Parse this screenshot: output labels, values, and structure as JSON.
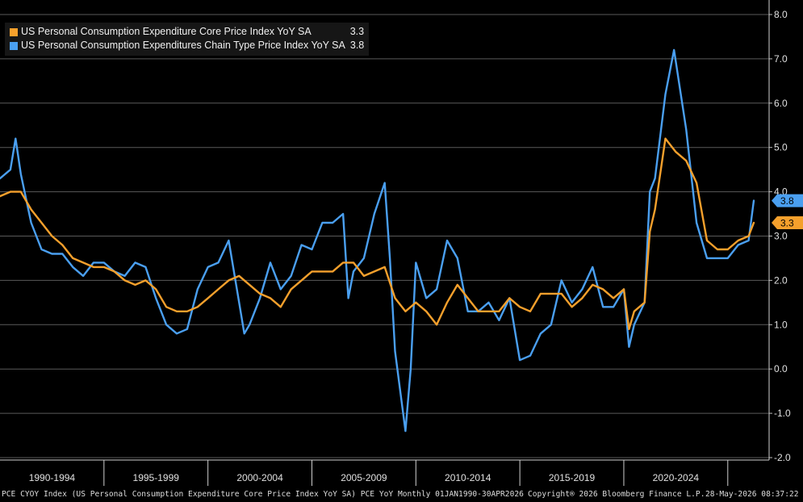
{
  "legend": {
    "items": [
      {
        "label": "US Personal Consumption Expenditure Core Price Index YoY SA",
        "value": "3.3",
        "color": "#f5a02c"
      },
      {
        "label": "US Personal Consumption Expenditures Chain Type Price Index YoY SA",
        "value": "3.8",
        "color": "#4a9ff0"
      }
    ]
  },
  "footer": {
    "left": "PCE CYOY Index (US Personal Consumption Expenditure Core Price Index YoY SA) PCE YoY Monthly 01JAN1990-30APR2026",
    "copyright": "Copyright® 2026 Bloomberg Finance L.P.",
    "timestamp": "28-May-2026 08:37:22"
  },
  "chart_data": {
    "type": "line",
    "ylim": [
      -2.0,
      8.0
    ],
    "y_ticks": [
      "8.0",
      "7.0",
      "6.0",
      "5.0",
      "4.0",
      "3.0",
      "2.0",
      "1.0",
      "0.0",
      "-1.0",
      "-2.0"
    ],
    "x_range": [
      "1990-01",
      "2026-04"
    ],
    "x_periods": [
      "1990-1994",
      "1995-1999",
      "2000-2004",
      "2005-2009",
      "2010-2014",
      "2015-2019",
      "2020-2024"
    ],
    "grid": "horizontal",
    "legend_position": "top-left",
    "series": [
      {
        "name": "US Personal Consumption Expenditure Core Price Index YoY SA",
        "color": "#f5a02c",
        "last_value": "3.3",
        "points": [
          [
            "1990-01",
            3.9
          ],
          [
            "1990-07",
            4.0
          ],
          [
            "1991-01",
            4.0
          ],
          [
            "1991-07",
            3.6
          ],
          [
            "1992-01",
            3.3
          ],
          [
            "1992-07",
            3.0
          ],
          [
            "1993-01",
            2.8
          ],
          [
            "1993-07",
            2.5
          ],
          [
            "1994-01",
            2.4
          ],
          [
            "1994-07",
            2.3
          ],
          [
            "1995-01",
            2.3
          ],
          [
            "1995-07",
            2.2
          ],
          [
            "1996-01",
            2.0
          ],
          [
            "1996-07",
            1.9
          ],
          [
            "1997-01",
            2.0
          ],
          [
            "1997-07",
            1.8
          ],
          [
            "1998-01",
            1.4
          ],
          [
            "1998-07",
            1.3
          ],
          [
            "1999-01",
            1.3
          ],
          [
            "1999-07",
            1.4
          ],
          [
            "2000-01",
            1.6
          ],
          [
            "2000-07",
            1.8
          ],
          [
            "2001-01",
            2.0
          ],
          [
            "2001-07",
            2.1
          ],
          [
            "2002-01",
            1.9
          ],
          [
            "2002-07",
            1.7
          ],
          [
            "2003-01",
            1.6
          ],
          [
            "2003-07",
            1.4
          ],
          [
            "2004-01",
            1.8
          ],
          [
            "2004-07",
            2.0
          ],
          [
            "2005-01",
            2.2
          ],
          [
            "2005-07",
            2.2
          ],
          [
            "2006-01",
            2.2
          ],
          [
            "2006-07",
            2.4
          ],
          [
            "2007-01",
            2.4
          ],
          [
            "2007-07",
            2.1
          ],
          [
            "2008-01",
            2.2
          ],
          [
            "2008-07",
            2.3
          ],
          [
            "2009-01",
            1.6
          ],
          [
            "2009-07",
            1.3
          ],
          [
            "2010-01",
            1.5
          ],
          [
            "2010-07",
            1.3
          ],
          [
            "2011-01",
            1.0
          ],
          [
            "2011-07",
            1.5
          ],
          [
            "2012-01",
            1.9
          ],
          [
            "2012-07",
            1.6
          ],
          [
            "2013-01",
            1.3
          ],
          [
            "2013-07",
            1.3
          ],
          [
            "2014-01",
            1.3
          ],
          [
            "2014-07",
            1.6
          ],
          [
            "2015-01",
            1.4
          ],
          [
            "2015-07",
            1.3
          ],
          [
            "2016-01",
            1.7
          ],
          [
            "2016-07",
            1.7
          ],
          [
            "2017-01",
            1.7
          ],
          [
            "2017-07",
            1.4
          ],
          [
            "2018-01",
            1.6
          ],
          [
            "2018-07",
            1.9
          ],
          [
            "2019-01",
            1.8
          ],
          [
            "2019-07",
            1.6
          ],
          [
            "2020-01",
            1.8
          ],
          [
            "2020-04",
            0.9
          ],
          [
            "2020-07",
            1.3
          ],
          [
            "2021-01",
            1.5
          ],
          [
            "2021-04",
            3.1
          ],
          [
            "2021-07",
            3.6
          ],
          [
            "2022-01",
            5.2
          ],
          [
            "2022-07",
            4.9
          ],
          [
            "2023-01",
            4.7
          ],
          [
            "2023-07",
            4.2
          ],
          [
            "2024-01",
            2.9
          ],
          [
            "2024-07",
            2.7
          ],
          [
            "2025-01",
            2.7
          ],
          [
            "2025-07",
            2.9
          ],
          [
            "2026-01",
            3.0
          ],
          [
            "2026-04",
            3.3
          ]
        ]
      },
      {
        "name": "US Personal Consumption Expenditures Chain Type Price Index YoY SA",
        "color": "#4a9ff0",
        "last_value": "3.8",
        "points": [
          [
            "1990-01",
            4.3
          ],
          [
            "1990-07",
            4.5
          ],
          [
            "1990-10",
            5.2
          ],
          [
            "1991-01",
            4.4
          ],
          [
            "1991-07",
            3.3
          ],
          [
            "1992-01",
            2.7
          ],
          [
            "1992-07",
            2.6
          ],
          [
            "1993-01",
            2.6
          ],
          [
            "1993-07",
            2.3
          ],
          [
            "1994-01",
            2.1
          ],
          [
            "1994-07",
            2.4
          ],
          [
            "1995-01",
            2.4
          ],
          [
            "1995-07",
            2.2
          ],
          [
            "1996-01",
            2.1
          ],
          [
            "1996-07",
            2.4
          ],
          [
            "1997-01",
            2.3
          ],
          [
            "1997-07",
            1.6
          ],
          [
            "1998-01",
            1.0
          ],
          [
            "1998-07",
            0.8
          ],
          [
            "1999-01",
            0.9
          ],
          [
            "1999-07",
            1.8
          ],
          [
            "2000-01",
            2.3
          ],
          [
            "2000-07",
            2.4
          ],
          [
            "2001-01",
            2.9
          ],
          [
            "2001-07",
            1.5
          ],
          [
            "2001-10",
            0.8
          ],
          [
            "2002-01",
            1.0
          ],
          [
            "2002-07",
            1.6
          ],
          [
            "2003-01",
            2.4
          ],
          [
            "2003-07",
            1.8
          ],
          [
            "2004-01",
            2.1
          ],
          [
            "2004-07",
            2.8
          ],
          [
            "2005-01",
            2.7
          ],
          [
            "2005-07",
            3.3
          ],
          [
            "2006-01",
            3.3
          ],
          [
            "2006-07",
            3.5
          ],
          [
            "2006-10",
            1.6
          ],
          [
            "2007-01",
            2.2
          ],
          [
            "2007-07",
            2.5
          ],
          [
            "2008-01",
            3.5
          ],
          [
            "2008-07",
            4.2
          ],
          [
            "2008-10",
            2.5
          ],
          [
            "2009-01",
            0.4
          ],
          [
            "2009-07",
            -1.4
          ],
          [
            "2009-10",
            0.0
          ],
          [
            "2010-01",
            2.4
          ],
          [
            "2010-07",
            1.6
          ],
          [
            "2011-01",
            1.8
          ],
          [
            "2011-07",
            2.9
          ],
          [
            "2011-10",
            2.7
          ],
          [
            "2012-01",
            2.5
          ],
          [
            "2012-07",
            1.3
          ],
          [
            "2013-01",
            1.3
          ],
          [
            "2013-07",
            1.5
          ],
          [
            "2014-01",
            1.1
          ],
          [
            "2014-07",
            1.6
          ],
          [
            "2015-01",
            0.2
          ],
          [
            "2015-07",
            0.3
          ],
          [
            "2016-01",
            0.8
          ],
          [
            "2016-07",
            1.0
          ],
          [
            "2017-01",
            2.0
          ],
          [
            "2017-07",
            1.5
          ],
          [
            "2018-01",
            1.8
          ],
          [
            "2018-07",
            2.3
          ],
          [
            "2019-01",
            1.4
          ],
          [
            "2019-07",
            1.4
          ],
          [
            "2020-01",
            1.8
          ],
          [
            "2020-04",
            0.5
          ],
          [
            "2020-07",
            1.0
          ],
          [
            "2021-01",
            1.5
          ],
          [
            "2021-04",
            4.0
          ],
          [
            "2021-07",
            4.3
          ],
          [
            "2022-01",
            6.2
          ],
          [
            "2022-06",
            7.2
          ],
          [
            "2023-01",
            5.4
          ],
          [
            "2023-07",
            3.3
          ],
          [
            "2024-01",
            2.5
          ],
          [
            "2024-07",
            2.5
          ],
          [
            "2025-01",
            2.5
          ],
          [
            "2025-07",
            2.8
          ],
          [
            "2026-01",
            2.9
          ],
          [
            "2026-04",
            3.8
          ]
        ]
      }
    ]
  }
}
